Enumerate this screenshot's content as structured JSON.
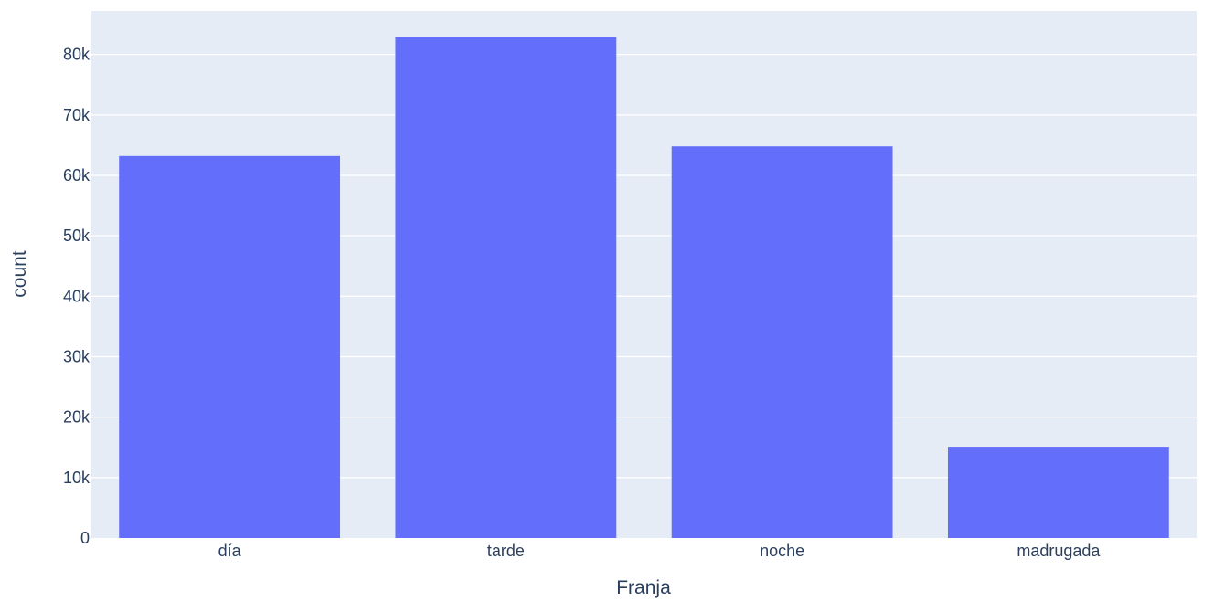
{
  "chart_data": {
    "type": "bar",
    "categories": [
      "día",
      "tarde",
      "noche",
      "madrugada"
    ],
    "values": [
      63200,
      82900,
      64800,
      15100
    ],
    "xlabel": "Franja",
    "ylabel": "count",
    "ylim": [
      0,
      87200
    ],
    "yticks": [
      0,
      10000,
      20000,
      30000,
      40000,
      50000,
      60000,
      70000,
      80000
    ],
    "ytick_labels": [
      "0",
      "10k",
      "20k",
      "30k",
      "40k",
      "50k",
      "60k",
      "70k",
      "80k"
    ],
    "grid": true,
    "bar_color": "#636efa",
    "plot_background": "#e5ecf6",
    "text_color": "#2a3f5f"
  }
}
